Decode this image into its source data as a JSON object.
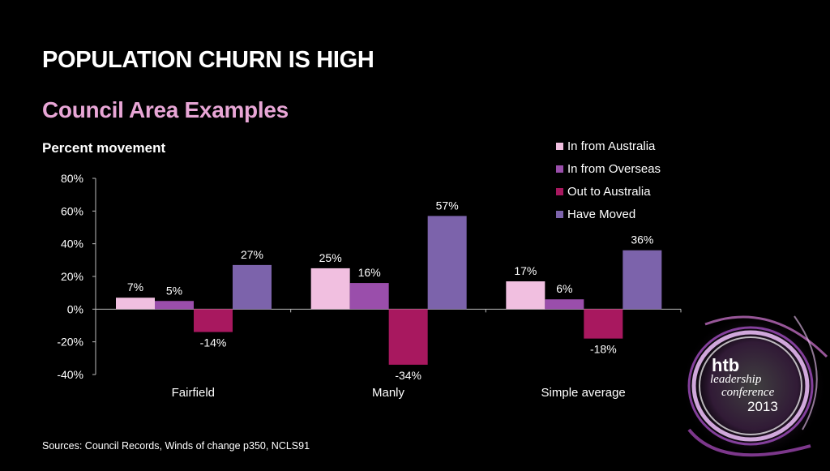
{
  "slide": {
    "title": "POPULATION CHURN IS HIGH",
    "subtitle": "Council Area Examples",
    "source": "Sources: Council Records, Winds of change p350, NCLS91"
  },
  "logo": {
    "brand": "htb",
    "line1": "leadership",
    "line2": "conference",
    "year": "2013"
  },
  "chart_data": {
    "type": "bar",
    "ylabel": "Percent movement",
    "categories": [
      "Fairfield",
      "Manly",
      "Simple average"
    ],
    "series": [
      {
        "name": "In from Australia",
        "values": [
          7,
          25,
          17
        ],
        "labels": [
          "7%",
          "25%",
          "17%"
        ],
        "color": "#f1bfe0"
      },
      {
        "name": "In from Overseas",
        "values": [
          5,
          16,
          6
        ],
        "labels": [
          "5%",
          "16%",
          "6%"
        ],
        "color": "#9a4eab"
      },
      {
        "name": "Out to Australia",
        "values": [
          -14,
          -34,
          -18
        ],
        "labels": [
          "-14%",
          "-34%",
          "-18%"
        ],
        "color": "#a8185f"
      },
      {
        "name": "Have Moved",
        "values": [
          27,
          57,
          36
        ],
        "labels": [
          "27%",
          "57%",
          "36%"
        ],
        "color": "#7c63ab"
      }
    ],
    "ylim": [
      -40,
      80
    ],
    "yticks": [
      80,
      60,
      40,
      20,
      0,
      -20,
      -40
    ],
    "ytick_labels": [
      "80%",
      "60%",
      "40%",
      "20%",
      "0%",
      "-20%",
      "-40%"
    ],
    "grid": false,
    "legend": "top-right"
  }
}
